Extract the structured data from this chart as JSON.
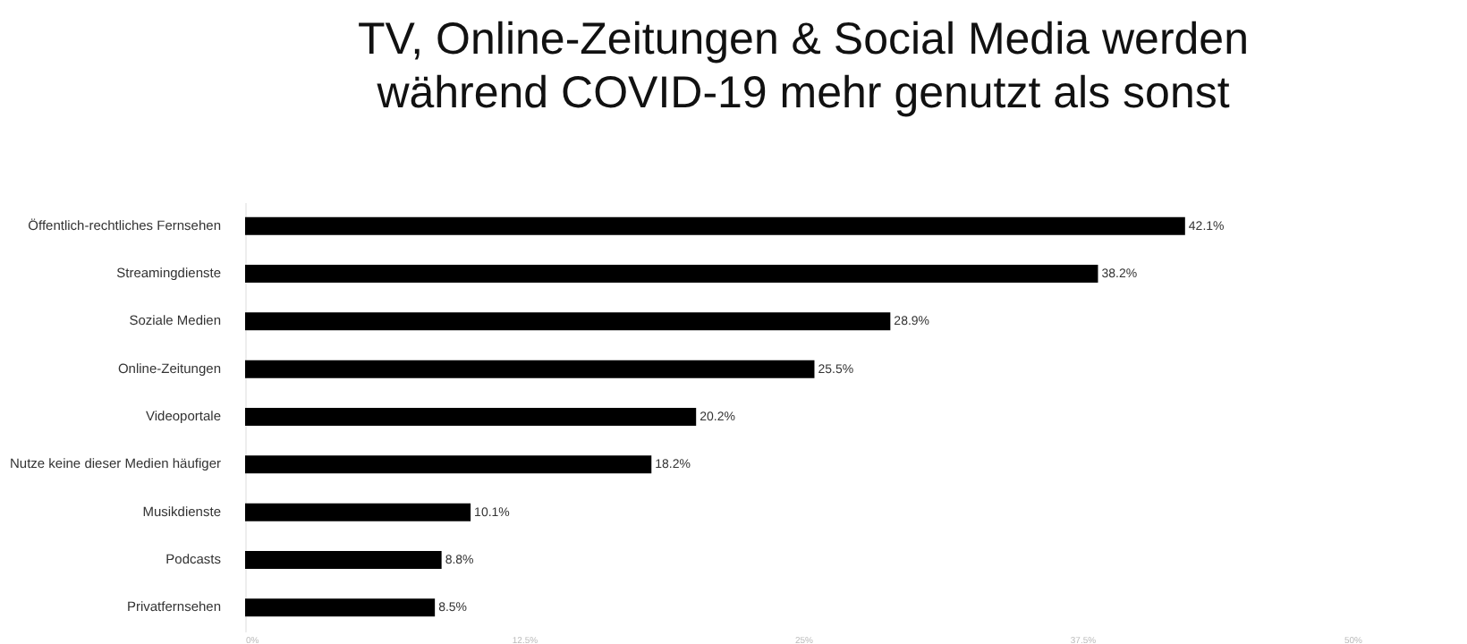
{
  "chart_data": {
    "type": "bar",
    "orientation": "horizontal",
    "title": [
      "TV, Online-Zeitungen & Social Media werden",
      "während COVID-19 mehr genutzt als sonst"
    ],
    "categories": [
      "Öffentlich-rechtliches Fernsehen",
      "Streamingdienste",
      "Soziale Medien",
      "Online-Zeitungen",
      "Videoportale",
      "Nutze keine dieser Medien häufiger",
      "Musikdienste",
      "Podcasts",
      "Privatfernsehen"
    ],
    "values": [
      42.1,
      38.2,
      28.9,
      25.5,
      20.2,
      18.2,
      10.1,
      8.8,
      8.5
    ],
    "value_labels": [
      "42.1%",
      "38.2%",
      "28.9%",
      "25.5%",
      "20.2%",
      "18.2%",
      "10.1%",
      "8.8%",
      "8.5%"
    ],
    "color": "#000000",
    "xlim": [
      0,
      50
    ],
    "xticks": [
      {
        "value": 0,
        "label": "0%"
      },
      {
        "value": 12.5,
        "label": "12.5%"
      },
      {
        "value": 25,
        "label": "25%"
      },
      {
        "value": 37.5,
        "label": "37.5%"
      },
      {
        "value": 50,
        "label": "50%"
      }
    ],
    "grid": false
  }
}
